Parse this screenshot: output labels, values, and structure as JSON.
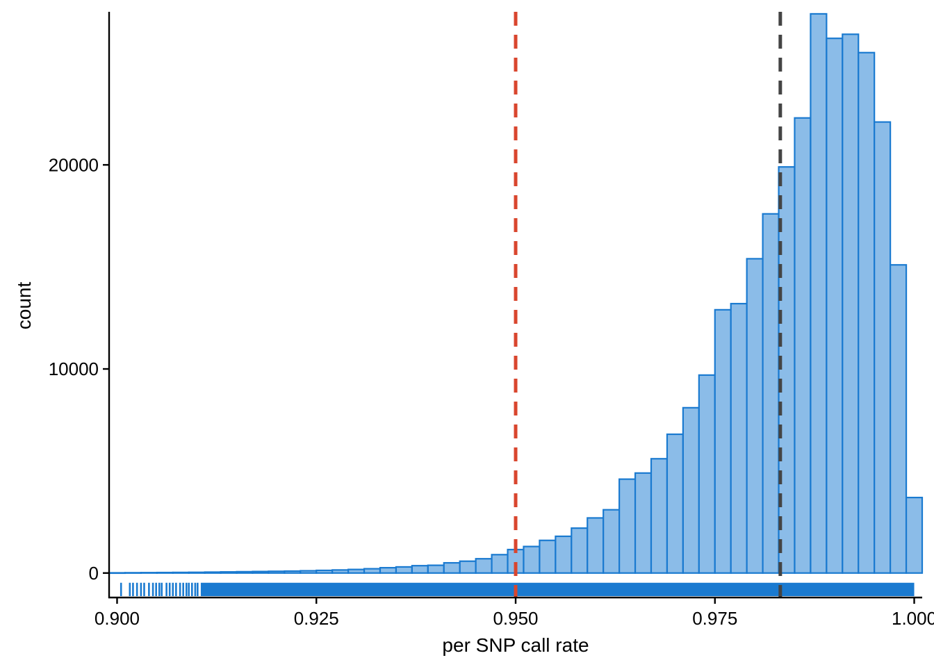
{
  "chart_data": {
    "type": "histogram",
    "title": "",
    "xlabel": "per SNP call rate",
    "ylabel": "count",
    "xlim": [
      0.899,
      1.001
    ],
    "ylim": [
      -1200,
      27500
    ],
    "x_ticks": [
      {
        "value": 0.9,
        "label": "0.900"
      },
      {
        "value": 0.925,
        "label": "0.925"
      },
      {
        "value": 0.95,
        "label": "0.950"
      },
      {
        "value": 0.975,
        "label": "0.975"
      },
      {
        "value": 1.0,
        "label": "1.000"
      }
    ],
    "y_ticks": [
      {
        "value": 0,
        "label": "0"
      },
      {
        "value": 10000,
        "label": "10000"
      },
      {
        "value": 20000,
        "label": "20000"
      }
    ],
    "bin_start": 0.899,
    "bin_width": 0.002,
    "counts": [
      10,
      15,
      20,
      25,
      30,
      35,
      45,
      55,
      65,
      75,
      85,
      95,
      110,
      130,
      150,
      175,
      210,
      260,
      300,
      360,
      380,
      500,
      580,
      700,
      900,
      1150,
      1300,
      1600,
      1800,
      2200,
      2700,
      3100,
      4600,
      4900,
      5600,
      6800,
      8100,
      9700,
      12900,
      13200,
      15400,
      17600,
      19900,
      22300,
      27400,
      26200,
      26400,
      25500,
      22100,
      15100,
      3700
    ],
    "reference_lines": [
      {
        "x": 0.95,
        "color": "#d9462e",
        "style": "dashed"
      },
      {
        "x": 0.9832,
        "color": "#444444",
        "style": "dashed"
      }
    ],
    "rug": {
      "x_start": 0.9005,
      "x_end": 1.0,
      "dense_from": 0.9105,
      "color": "#1a7ad0"
    },
    "colors": {
      "bar_fill": "#8bbce8",
      "bar_stroke": "#1a7ad0",
      "axis": "#000000"
    }
  }
}
